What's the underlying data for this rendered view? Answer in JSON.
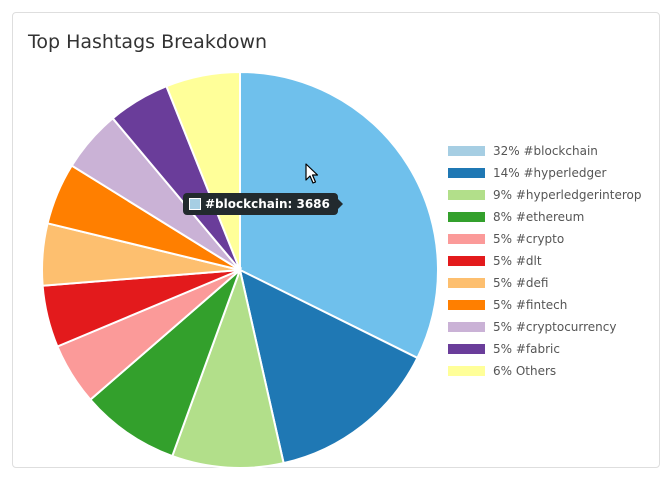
{
  "panel": {
    "title": "Top Hashtags Breakdown"
  },
  "chart_data": {
    "type": "pie",
    "title": "Top Hashtags Breakdown",
    "slices": [
      {
        "label": "#blockchain",
        "percent": 32,
        "legend": "32% #blockchain",
        "color": "#a6cee3"
      },
      {
        "label": "#hyperledger",
        "percent": 14,
        "legend": "14% #hyperledger",
        "color": "#1f78b4"
      },
      {
        "label": "#hyperledgerinterop",
        "percent": 9,
        "legend": "9% #hyperledgerinterop",
        "color": "#b2df8a"
      },
      {
        "label": "#ethereum",
        "percent": 8,
        "legend": "8% #ethereum",
        "color": "#33a02c"
      },
      {
        "label": "#crypto",
        "percent": 5,
        "legend": "5% #crypto",
        "color": "#fb9a99"
      },
      {
        "label": "#dlt",
        "percent": 5,
        "legend": "5% #dlt",
        "color": "#e31a1c"
      },
      {
        "label": "#defi",
        "percent": 5,
        "legend": "5% #defi",
        "color": "#fdbf6f"
      },
      {
        "label": "#fintech",
        "percent": 5,
        "legend": "5% #fintech",
        "color": "#ff7f00"
      },
      {
        "label": "#cryptocurrency",
        "percent": 5,
        "legend": "5% #cryptocurrency",
        "color": "#cab2d6"
      },
      {
        "label": "#fabric",
        "percent": 5,
        "legend": "5% #fabric",
        "color": "#6a3d9a"
      },
      {
        "label": "Others",
        "percent": 6,
        "legend": "6% Others",
        "color": "#ffff99"
      }
    ],
    "hovered_slice_color": "#6fc0ec",
    "legend_position": "right",
    "tooltip": {
      "text": "#blockchain: 3686",
      "swatch_color": "#a6cee3"
    }
  }
}
